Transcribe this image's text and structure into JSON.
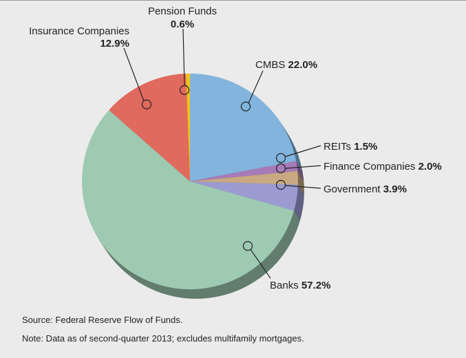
{
  "chart_data": {
    "type": "pie",
    "categories": [
      "CMBS",
      "REITs",
      "Finance Companies",
      "Government",
      "Banks",
      "Insurance Companies",
      "Pension Funds"
    ],
    "values": [
      22.0,
      1.5,
      2.0,
      3.9,
      57.2,
      12.9,
      0.6
    ],
    "value_labels": [
      "22.0%",
      "1.5%",
      "2.0%",
      "3.9%",
      "57.2%",
      "12.9%",
      "0.6%"
    ],
    "colors": [
      "#82b4dd",
      "#a77bb7",
      "#c8a981",
      "#9b9bd1",
      "#9ecab2",
      "#e06a5d",
      "#f0c31a"
    ],
    "source": "Source: Federal Reserve Flow of Funds.",
    "note": "Note: Data as of second-quarter 2013; excludes multifamily mortgages."
  }
}
